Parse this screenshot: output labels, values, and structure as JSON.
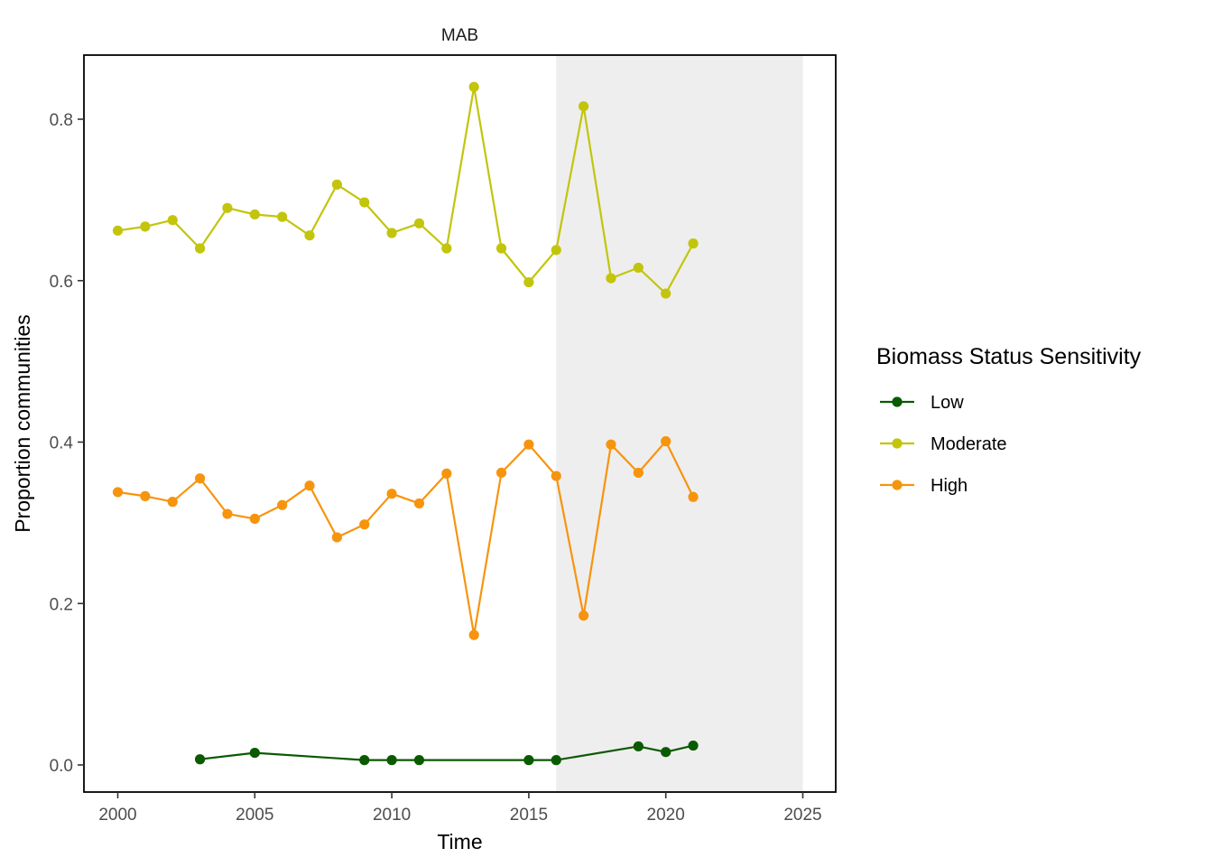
{
  "chart_data": {
    "type": "line",
    "title": "MAB",
    "xlabel": "Time",
    "ylabel": "Proportion communities",
    "xlim": [
      1999,
      2025
    ],
    "ylim": [
      -0.035,
      0.88
    ],
    "x_ticks": [
      2000,
      2005,
      2010,
      2015,
      2020,
      2025
    ],
    "y_ticks": [
      0.0,
      0.2,
      0.4,
      0.6,
      0.8
    ],
    "y_tick_labels": [
      "0.0",
      "0.2",
      "0.4",
      "0.6",
      "0.8"
    ],
    "shaded_region": {
      "x_start": 2016,
      "x_end": 2025,
      "color": "#eeeeee"
    },
    "grid": false,
    "legend": {
      "title": "Biomass Status Sensitivity",
      "placement": "right"
    },
    "series": [
      {
        "name": "Low",
        "color": "#0a5a00",
        "x": [
          2003,
          2005,
          2009,
          2010,
          2011,
          2015,
          2016,
          2019,
          2020,
          2021
        ],
        "values": [
          0.007,
          0.015,
          0.006,
          0.006,
          0.006,
          0.006,
          0.006,
          0.023,
          0.016,
          0.024
        ]
      },
      {
        "name": "Moderate",
        "color": "#c2c50c",
        "x": [
          2000,
          2001,
          2002,
          2003,
          2004,
          2005,
          2006,
          2007,
          2008,
          2009,
          2010,
          2011,
          2012,
          2013,
          2014,
          2015,
          2016,
          2017,
          2018,
          2019,
          2020,
          2021
        ],
        "values": [
          0.662,
          0.667,
          0.675,
          0.64,
          0.69,
          0.682,
          0.679,
          0.656,
          0.719,
          0.697,
          0.659,
          0.671,
          0.64,
          0.84,
          0.64,
          0.598,
          0.638,
          0.816,
          0.603,
          0.616,
          0.584,
          0.646
        ]
      },
      {
        "name": "High",
        "color": "#f7940e",
        "x": [
          2000,
          2001,
          2002,
          2003,
          2004,
          2005,
          2006,
          2007,
          2008,
          2009,
          2010,
          2011,
          2012,
          2013,
          2014,
          2015,
          2016,
          2017,
          2018,
          2019,
          2020,
          2021
        ],
        "values": [
          0.338,
          0.333,
          0.326,
          0.355,
          0.311,
          0.305,
          0.322,
          0.346,
          0.282,
          0.298,
          0.336,
          0.324,
          0.361,
          0.161,
          0.362,
          0.397,
          0.358,
          0.185,
          0.397,
          0.362,
          0.401,
          0.332
        ]
      }
    ]
  }
}
